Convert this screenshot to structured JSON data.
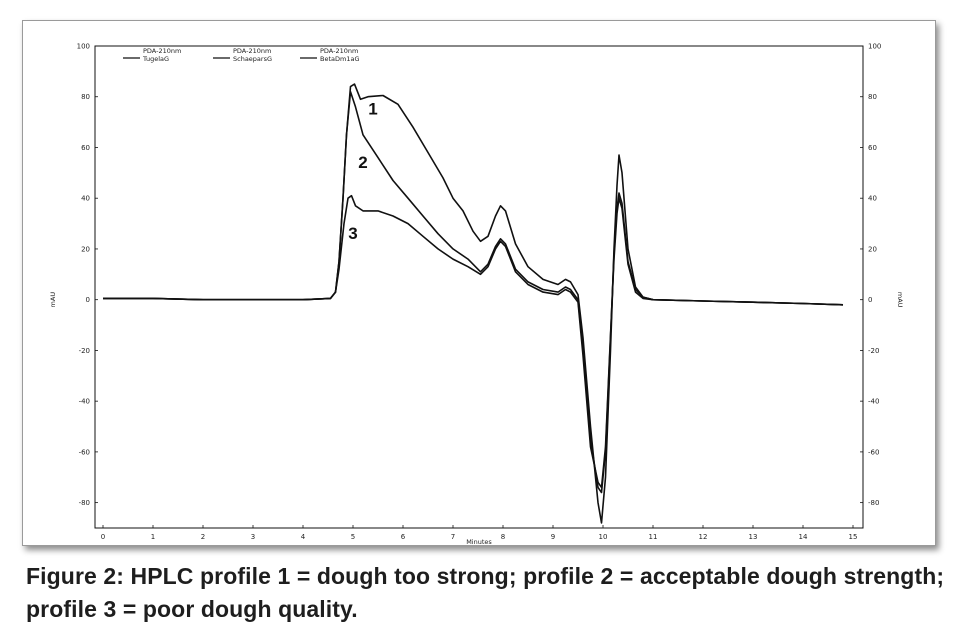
{
  "caption": "Figure 2: HPLC profile 1 = dough too strong; profile 2 = acceptable dough strength; profile 3 = poor dough quality.",
  "chart_data": {
    "type": "line",
    "xlabel": "Minutes",
    "ylabel_left": "mAU",
    "ylabel_right": "mAU",
    "xlim": [
      0,
      15
    ],
    "ylim": [
      -90,
      100
    ],
    "x_ticks": [
      0,
      1,
      2,
      3,
      4,
      5,
      6,
      7,
      8,
      9,
      10,
      11,
      12,
      13,
      14,
      15
    ],
    "y_ticks": [
      100,
      80,
      60,
      40,
      20,
      0,
      -20,
      -40,
      -60,
      -80
    ],
    "grid": false,
    "legend_placement": "top-left",
    "legend": [
      {
        "header": "PDA-210nm",
        "name": "TugelaG"
      },
      {
        "header": "PDA-210nm",
        "name": "SchaeparsG"
      },
      {
        "header": "PDA-210nm",
        "name": "BetaDm1aG"
      }
    ],
    "peak_labels": [
      {
        "text": "1",
        "x": 5.4,
        "y": 73
      },
      {
        "text": "2",
        "x": 5.2,
        "y": 52
      },
      {
        "text": "3",
        "x": 5.0,
        "y": 24
      }
    ],
    "series": [
      {
        "label": "1",
        "color": "#111111",
        "points": [
          [
            0,
            0.5
          ],
          [
            1,
            0.5
          ],
          [
            2,
            0
          ],
          [
            3,
            0
          ],
          [
            4,
            0
          ],
          [
            4.55,
            0.5
          ],
          [
            4.65,
            3
          ],
          [
            4.72,
            15
          ],
          [
            4.8,
            40
          ],
          [
            4.87,
            65
          ],
          [
            4.95,
            84
          ],
          [
            5.03,
            85
          ],
          [
            5.15,
            79
          ],
          [
            5.3,
            80
          ],
          [
            5.6,
            80.5
          ],
          [
            5.9,
            77
          ],
          [
            6.2,
            68
          ],
          [
            6.5,
            58
          ],
          [
            6.8,
            48
          ],
          [
            7.0,
            40
          ],
          [
            7.2,
            35
          ],
          [
            7.4,
            27
          ],
          [
            7.55,
            23
          ],
          [
            7.7,
            25
          ],
          [
            7.85,
            33
          ],
          [
            7.95,
            37
          ],
          [
            8.05,
            35
          ],
          [
            8.25,
            22
          ],
          [
            8.5,
            13
          ],
          [
            8.8,
            8
          ],
          [
            9.1,
            6
          ],
          [
            9.25,
            8
          ],
          [
            9.35,
            7
          ],
          [
            9.5,
            2
          ],
          [
            9.6,
            -15
          ],
          [
            9.75,
            -50
          ],
          [
            9.9,
            -80
          ],
          [
            9.97,
            -88
          ],
          [
            10.05,
            -70
          ],
          [
            10.15,
            -20
          ],
          [
            10.22,
            20
          ],
          [
            10.28,
            45
          ],
          [
            10.32,
            57
          ],
          [
            10.38,
            50
          ],
          [
            10.5,
            20
          ],
          [
            10.65,
            5
          ],
          [
            10.8,
            1
          ],
          [
            11,
            0
          ],
          [
            12,
            -0.5
          ],
          [
            13,
            -1
          ],
          [
            14,
            -1.5
          ],
          [
            14.8,
            -2
          ]
        ]
      },
      {
        "label": "2",
        "color": "#111111",
        "points": [
          [
            0,
            0.5
          ],
          [
            1,
            0.5
          ],
          [
            2,
            0
          ],
          [
            3,
            0
          ],
          [
            4,
            0
          ],
          [
            4.55,
            0.5
          ],
          [
            4.65,
            3
          ],
          [
            4.72,
            15
          ],
          [
            4.8,
            40
          ],
          [
            4.87,
            65
          ],
          [
            4.95,
            82
          ],
          [
            5.05,
            76
          ],
          [
            5.2,
            65
          ],
          [
            5.5,
            56
          ],
          [
            5.8,
            47
          ],
          [
            6.1,
            40
          ],
          [
            6.4,
            33
          ],
          [
            6.7,
            26
          ],
          [
            7.0,
            20
          ],
          [
            7.3,
            16
          ],
          [
            7.55,
            11
          ],
          [
            7.7,
            14
          ],
          [
            7.85,
            21
          ],
          [
            7.95,
            24
          ],
          [
            8.05,
            22
          ],
          [
            8.25,
            12
          ],
          [
            8.5,
            7
          ],
          [
            8.8,
            4
          ],
          [
            9.1,
            3
          ],
          [
            9.25,
            5
          ],
          [
            9.35,
            4
          ],
          [
            9.5,
            0
          ],
          [
            9.6,
            -20
          ],
          [
            9.75,
            -55
          ],
          [
            9.9,
            -74
          ],
          [
            9.97,
            -76
          ],
          [
            10.05,
            -60
          ],
          [
            10.15,
            -15
          ],
          [
            10.22,
            18
          ],
          [
            10.28,
            36
          ],
          [
            10.32,
            42
          ],
          [
            10.38,
            38
          ],
          [
            10.5,
            15
          ],
          [
            10.65,
            4
          ],
          [
            10.8,
            1
          ],
          [
            11,
            0
          ],
          [
            12,
            -0.5
          ],
          [
            13,
            -1
          ],
          [
            14,
            -1.5
          ],
          [
            14.8,
            -2
          ]
        ]
      },
      {
        "label": "3",
        "color": "#111111",
        "points": [
          [
            0,
            0.5
          ],
          [
            1,
            0.5
          ],
          [
            2,
            0
          ],
          [
            3,
            0
          ],
          [
            4,
            0
          ],
          [
            4.55,
            0.5
          ],
          [
            4.65,
            3
          ],
          [
            4.72,
            12
          ],
          [
            4.82,
            30
          ],
          [
            4.9,
            40
          ],
          [
            4.97,
            41
          ],
          [
            5.05,
            37
          ],
          [
            5.2,
            35
          ],
          [
            5.5,
            35
          ],
          [
            5.8,
            33
          ],
          [
            6.1,
            30
          ],
          [
            6.4,
            25
          ],
          [
            6.7,
            20
          ],
          [
            7.0,
            16
          ],
          [
            7.3,
            13
          ],
          [
            7.55,
            10
          ],
          [
            7.7,
            13
          ],
          [
            7.85,
            20
          ],
          [
            7.95,
            23
          ],
          [
            8.05,
            21
          ],
          [
            8.25,
            11
          ],
          [
            8.5,
            6
          ],
          [
            8.8,
            3
          ],
          [
            9.1,
            2
          ],
          [
            9.25,
            4
          ],
          [
            9.35,
            3
          ],
          [
            9.5,
            -1
          ],
          [
            9.6,
            -22
          ],
          [
            9.75,
            -58
          ],
          [
            9.9,
            -72
          ],
          [
            9.97,
            -74
          ],
          [
            10.05,
            -58
          ],
          [
            10.15,
            -14
          ],
          [
            10.22,
            16
          ],
          [
            10.28,
            34
          ],
          [
            10.32,
            40
          ],
          [
            10.38,
            36
          ],
          [
            10.5,
            14
          ],
          [
            10.65,
            3
          ],
          [
            10.8,
            0.5
          ],
          [
            11,
            0
          ],
          [
            12,
            -0.5
          ],
          [
            13,
            -1
          ],
          [
            14,
            -1.5
          ],
          [
            14.8,
            -2
          ]
        ]
      }
    ]
  }
}
